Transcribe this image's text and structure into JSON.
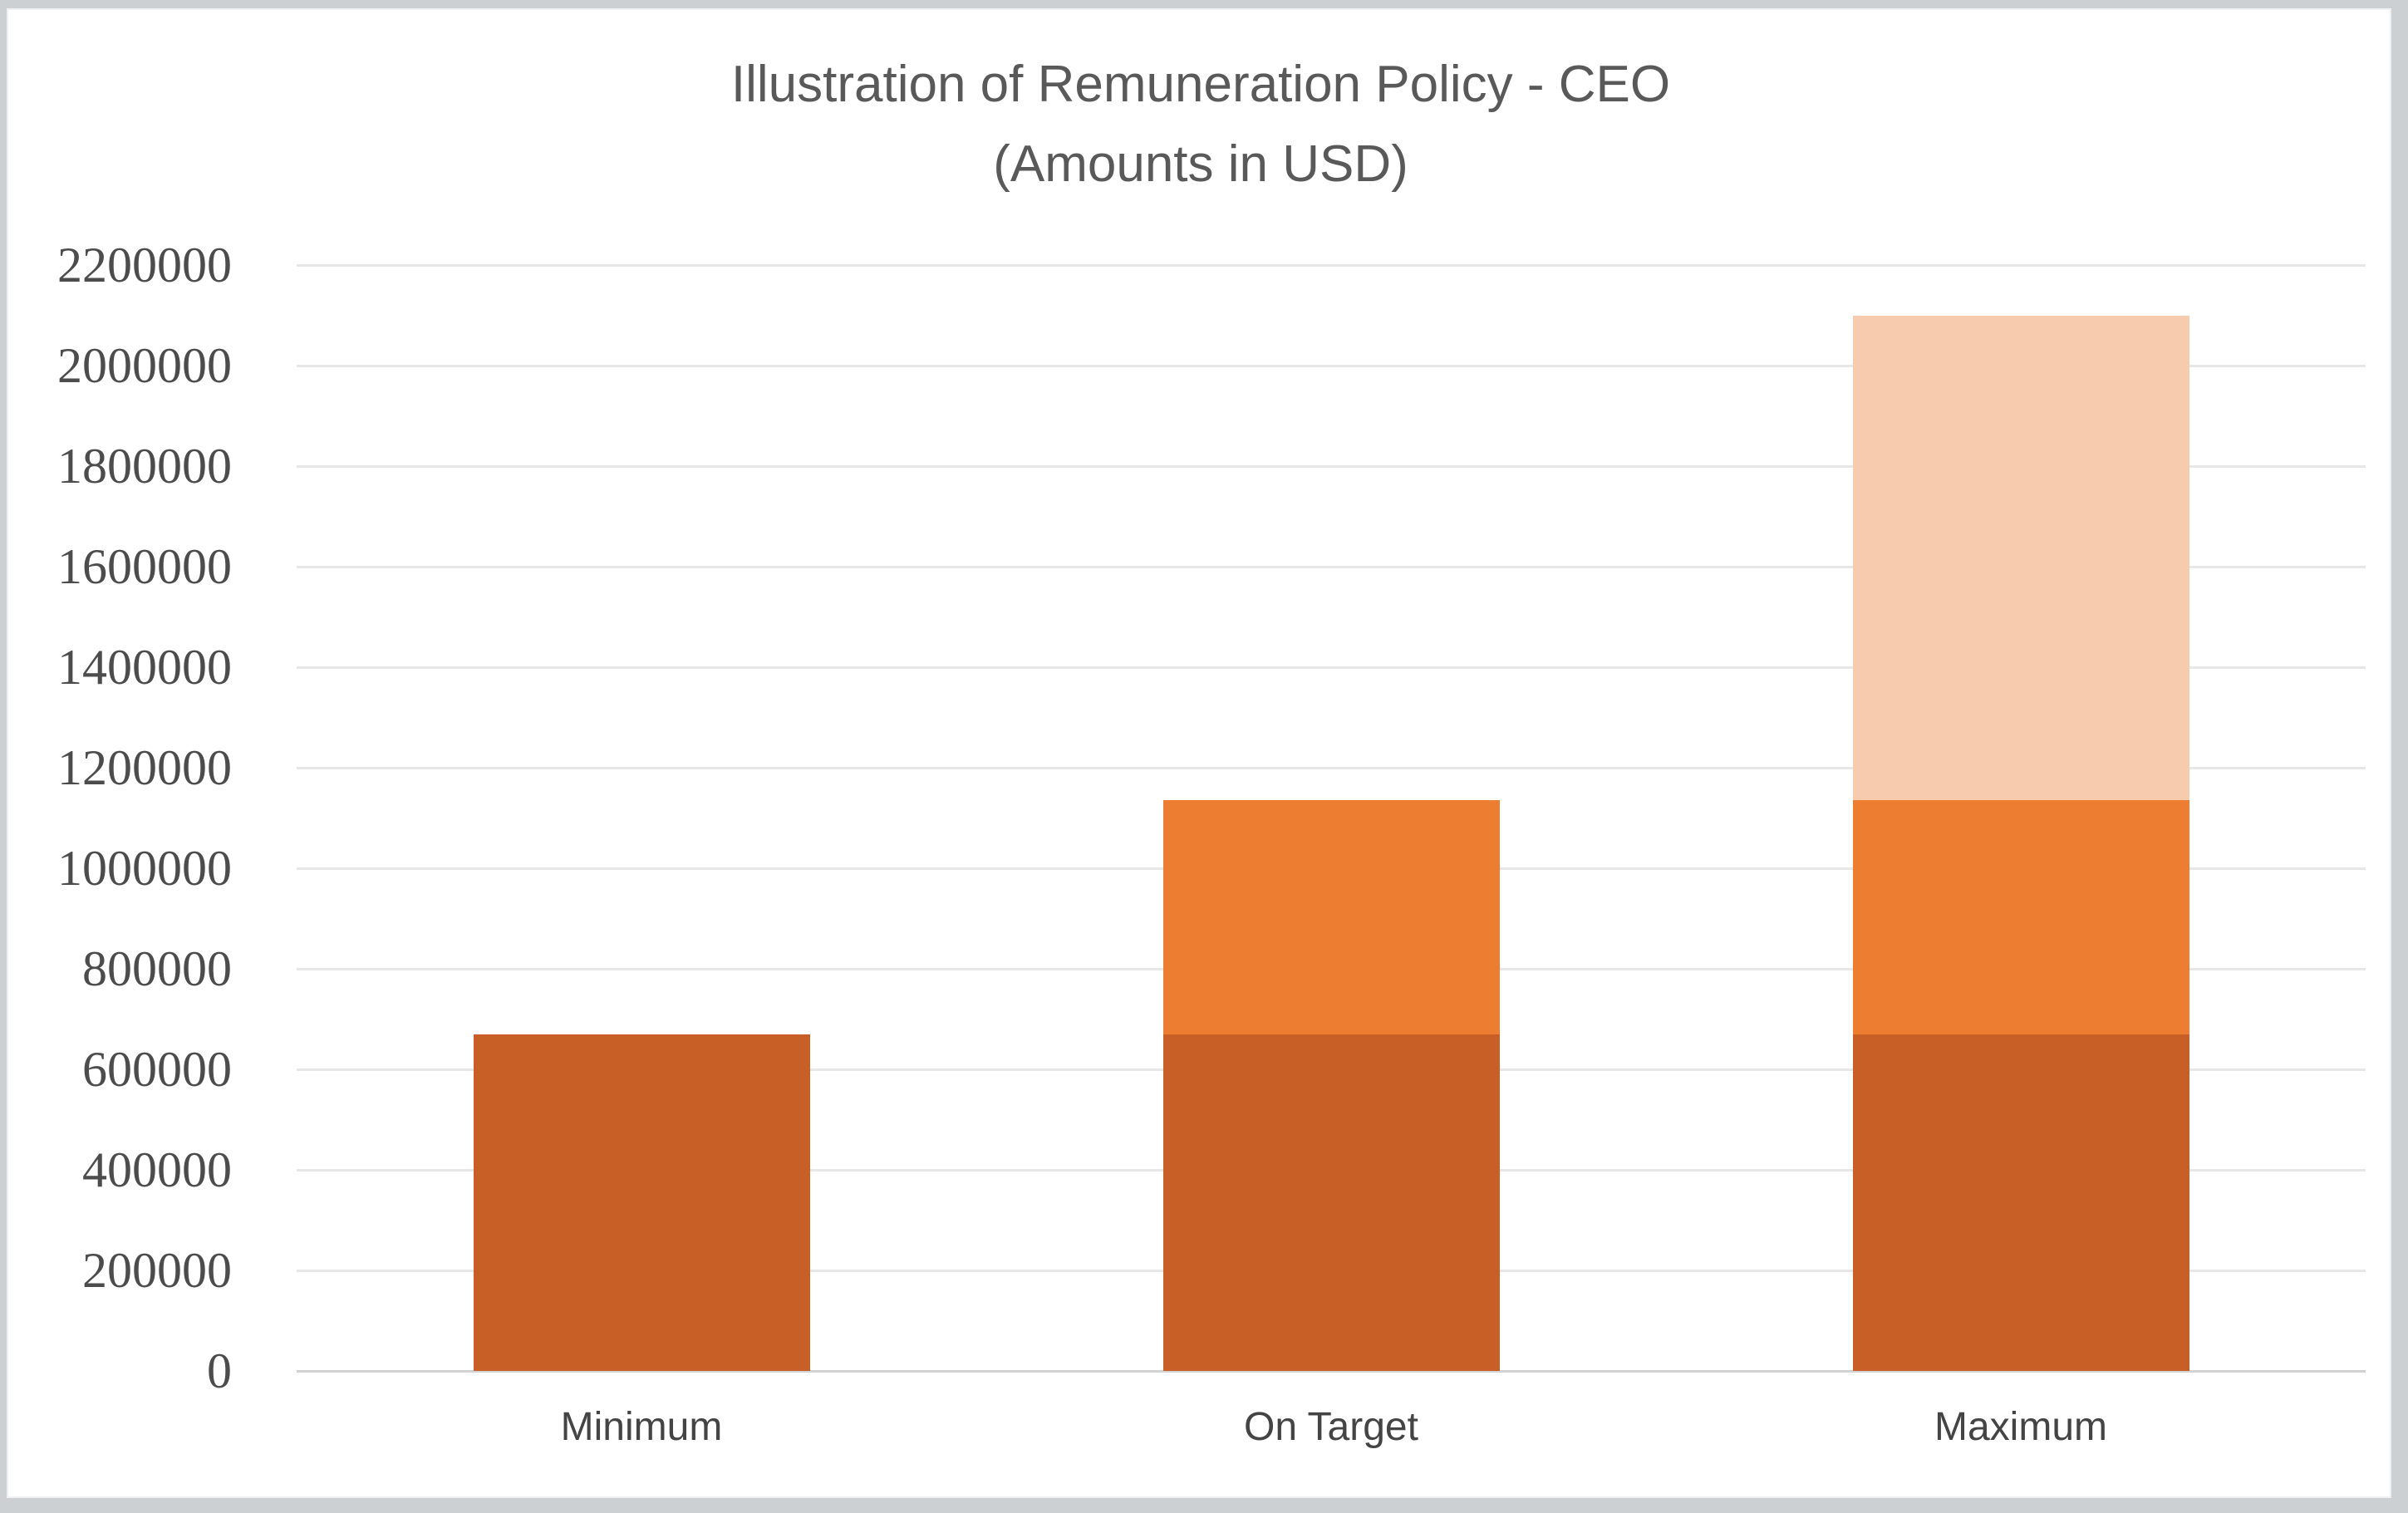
{
  "chart_data": {
    "type": "bar",
    "stacked": true,
    "title": "Illustration of Remuneration Policy - CEO",
    "subtitle": "(Amounts in USD)",
    "categories": [
      "Minimum",
      "On Target",
      "Maximum"
    ],
    "series": [
      {
        "name": "Series 1 (dark orange segment)",
        "color": "#C75F27",
        "values": [
          670000,
          670000,
          670000
        ]
      },
      {
        "name": "Series 2 (orange segment)",
        "color": "#ED7D31",
        "values": [
          0,
          465000,
          465000
        ]
      },
      {
        "name": "Series 3 (light orange segment)",
        "color": "#F7CCAE",
        "values": [
          0,
          0,
          965000
        ]
      }
    ],
    "totals": [
      670000,
      1135000,
      2100000
    ],
    "ylim": [
      0,
      2200000
    ],
    "ytick_step": 200000,
    "ytick_labels": [
      "0",
      "200000",
      "400000",
      "600000",
      "800000",
      "1000000",
      "1200000",
      "1400000",
      "1600000",
      "1800000",
      "2000000",
      "2200000"
    ],
    "xlabel": "",
    "ylabel": "",
    "grid": true,
    "legend": "none"
  },
  "colors": {
    "page_margin": "#cdd0d2",
    "chart_background": "#ffffff",
    "gridline": "#e7e7e7",
    "axis_line": "#d2d2d2",
    "title_text": "#595959",
    "tick_text": "#4c4c4c",
    "category_text": "#444444"
  }
}
